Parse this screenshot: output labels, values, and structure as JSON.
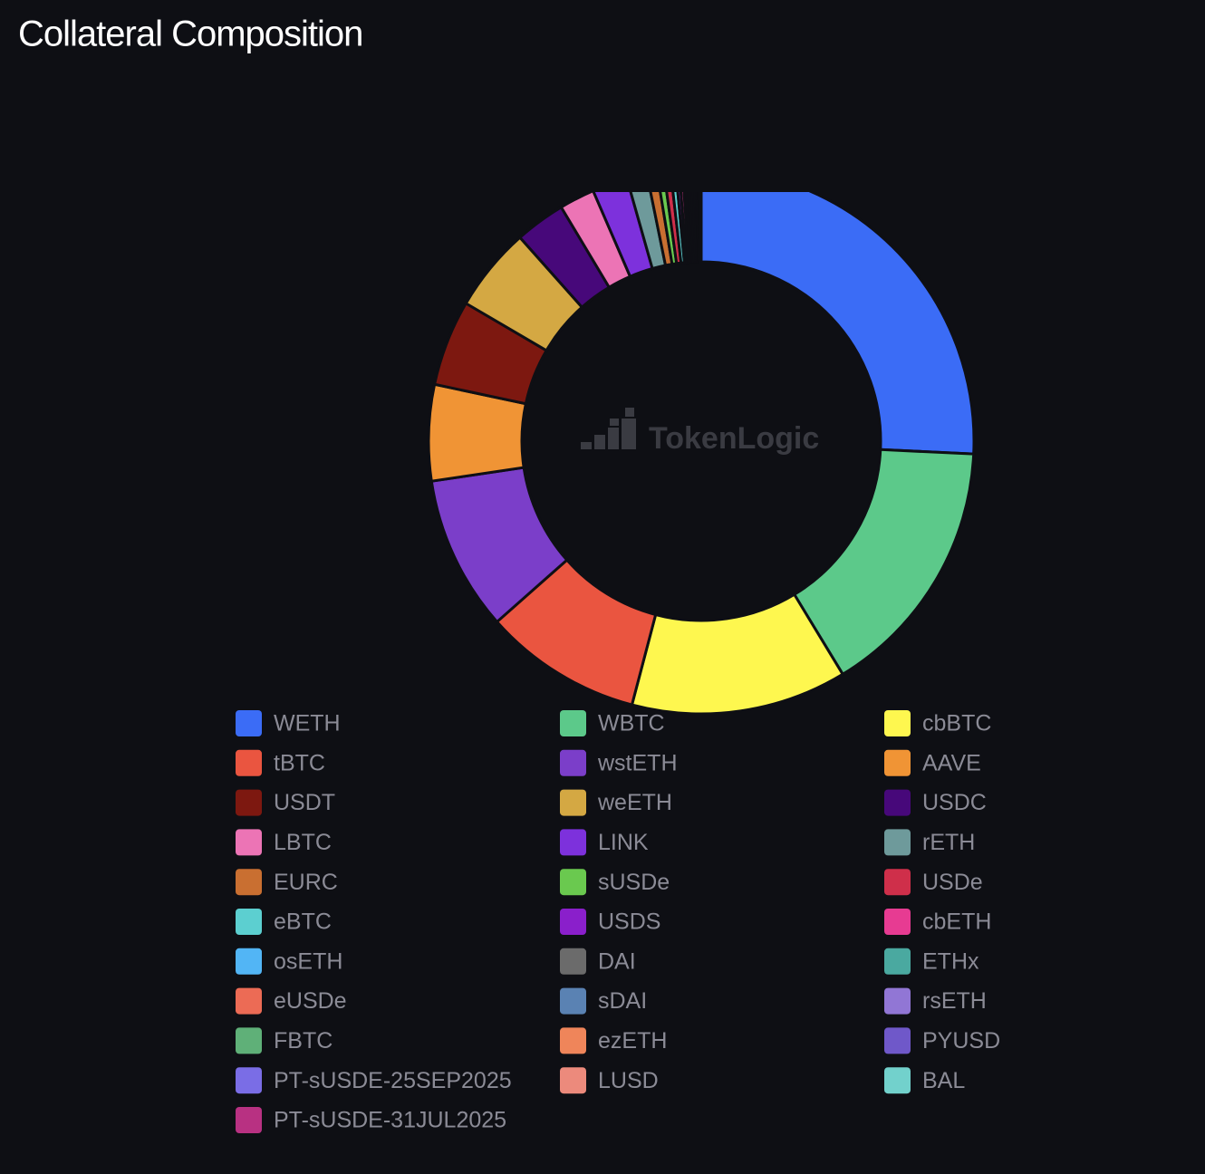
{
  "chart_data": {
    "type": "donut",
    "title": "Collateral Composition",
    "watermark": "TokenLogic",
    "categories": [
      "WETH",
      "WBTC",
      "cbBTC",
      "tBTC",
      "wstETH",
      "AAVE",
      "USDT",
      "weETH",
      "USDC",
      "LBTC",
      "LINK",
      "rETH",
      "EURC",
      "sUSDe",
      "USDe",
      "eBTC",
      "USDS",
      "cbETH",
      "osETH",
      "DAI",
      "ETHx",
      "eUSDe",
      "sDAI",
      "rsETH",
      "FBTC",
      "ezETH",
      "PYUSD",
      "PT-sUSDE-25SEP2025",
      "LUSD",
      "BAL",
      "PT-sUSDE-31JUL2025"
    ],
    "values": [
      25.8,
      15.6,
      12.8,
      9.4,
      9.2,
      5.7,
      5.1,
      5.0,
      3.0,
      2.1,
      2.1,
      1.2,
      0.6,
      0.4,
      0.4,
      0.3,
      0.2,
      0.2,
      0.15,
      0.15,
      0.1,
      0.1,
      0.1,
      0.1,
      0.1,
      0.05,
      0.05,
      0.05,
      0.05,
      0.05,
      0.05
    ],
    "colors": [
      "#3b6cf6",
      "#5cc98a",
      "#fef74f",
      "#ea5540",
      "#7b3ec9",
      "#f09435",
      "#7d1810",
      "#d4a843",
      "#47087a",
      "#ec74b5",
      "#7d31dc",
      "#6e9a9b",
      "#c96f31",
      "#6ac94f",
      "#cf2f4a",
      "#5ccfd0",
      "#8a1fcb",
      "#e73b92",
      "#52b5f5",
      "#6b6b6b",
      "#4aa9a0",
      "#ec6b55",
      "#5a82b3",
      "#9176d5",
      "#5fb078",
      "#ef855a",
      "#6f58c9",
      "#7a6de6",
      "#ec8a7c",
      "#72d1cc",
      "#b83182"
    ]
  }
}
